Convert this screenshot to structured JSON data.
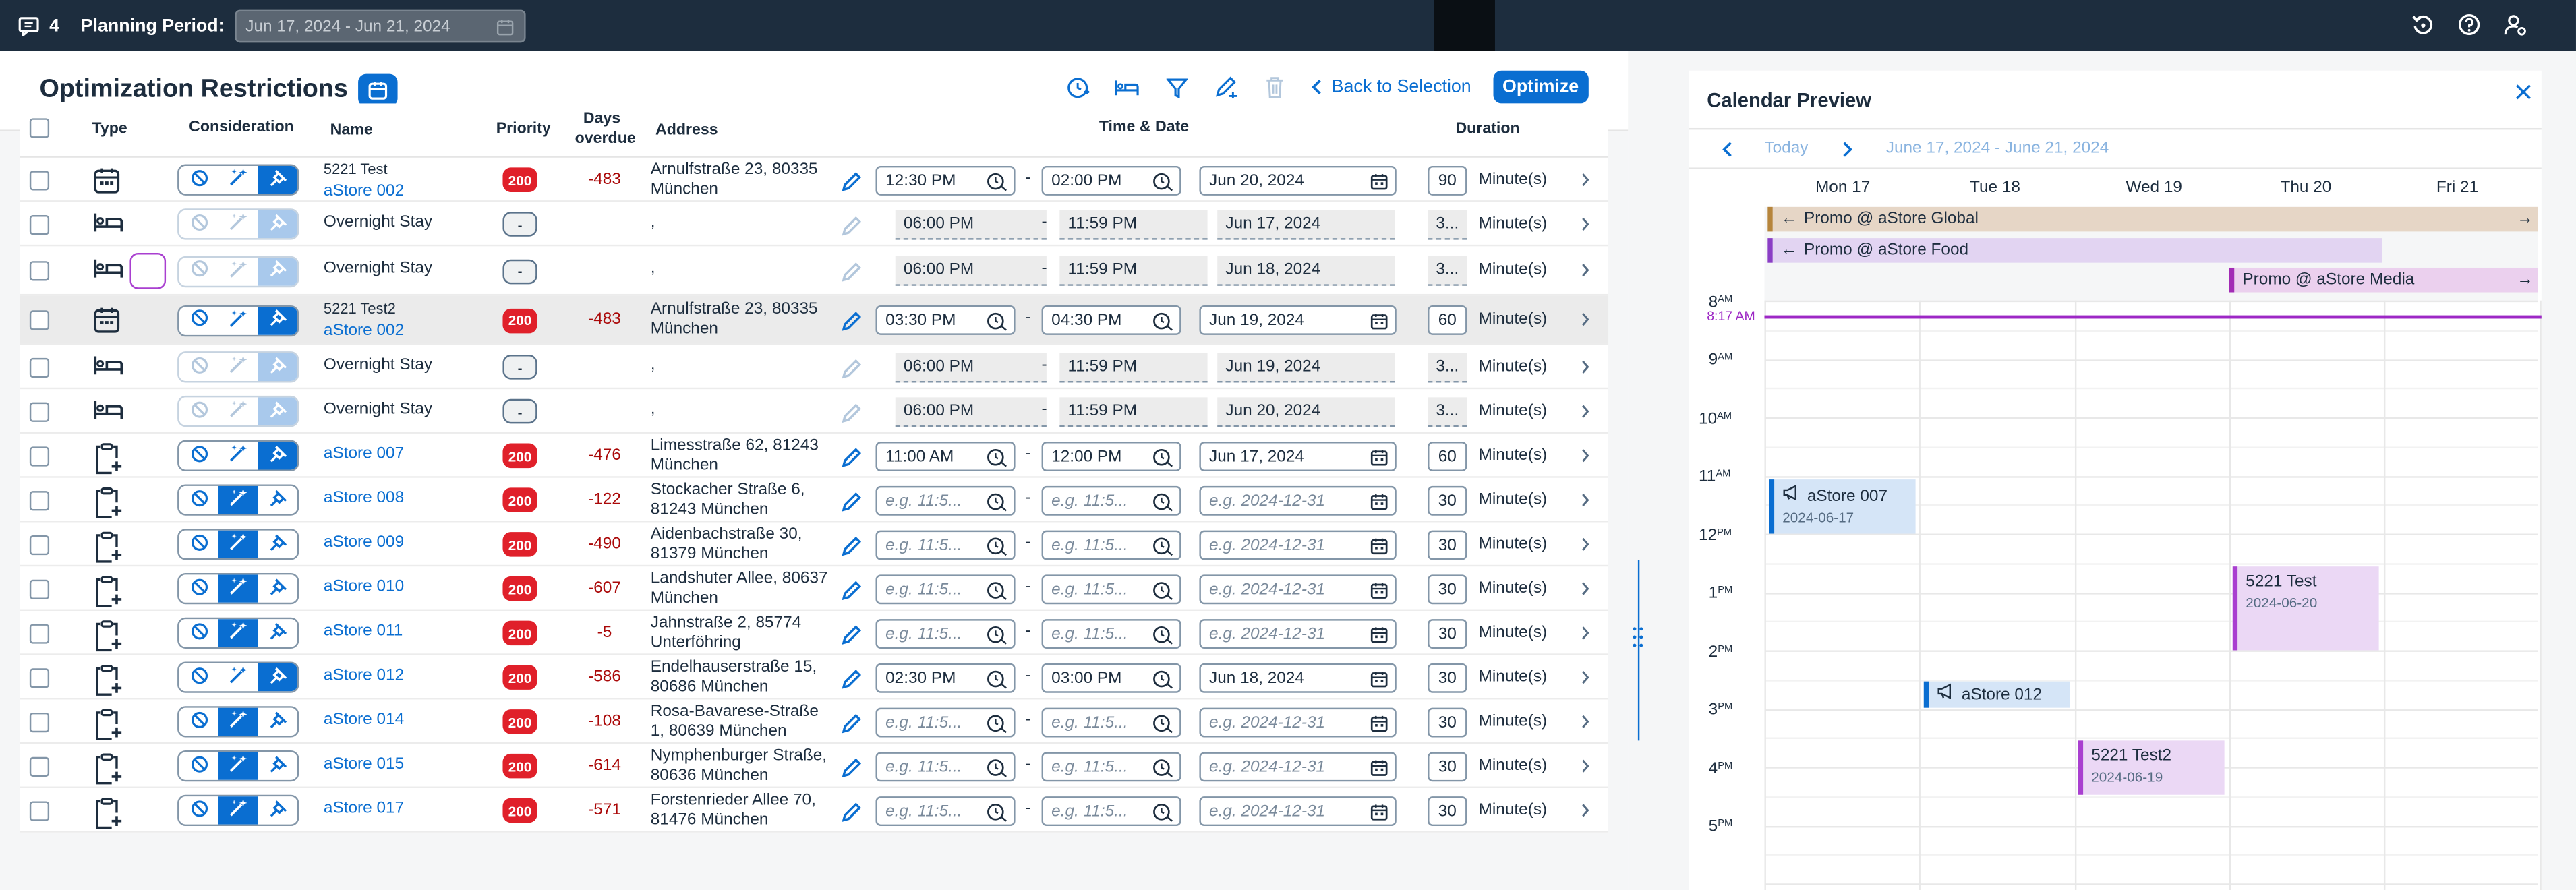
{
  "shell": {
    "message_count": "4",
    "planning_label": "Planning Period:",
    "planning_value": "Jun 17, 2024 - Jun 21, 2024"
  },
  "page": {
    "title": "Optimization Restrictions",
    "back_label": "Back to Selection",
    "optimize_label": "Optimize"
  },
  "columns": {
    "type": "Type",
    "consideration": "Consideration",
    "name": "Name",
    "priority": "Priority",
    "days_overdue_1": "Days",
    "days_overdue_2": "overdue",
    "address": "Address",
    "time_date": "Time & Date",
    "duration": "Duration"
  },
  "rows": [
    {
      "type": "calendar",
      "small": "5221 Test",
      "name": "aStore 002",
      "link": true,
      "prio": "200",
      "days": "-483",
      "addr1": "Arnulfstraße 23, 80335",
      "addr2": "München",
      "start": "12:30 PM",
      "end": "02:00 PM",
      "date": "Jun 20, 2024",
      "dur": "90",
      "unit": "Minute(s)",
      "state": "normal",
      "cons": [
        false,
        false,
        true
      ]
    },
    {
      "type": "bed",
      "small": "",
      "name": "Overnight Stay",
      "link": false,
      "prio": "-",
      "days": "",
      "addr1": ",",
      "addr2": "",
      "start": "06:00 PM",
      "end": "11:59 PM",
      "date": "Jun 17, 2024",
      "dur": "3...",
      "unit": "Minute(s)",
      "state": "disabled",
      "cons": [
        false,
        false,
        true
      ]
    },
    {
      "type": "bed",
      "small": "",
      "name": "Overnight Stay",
      "link": false,
      "prio": "-",
      "days": "",
      "addr1": ",",
      "addr2": "",
      "start": "06:00 PM",
      "end": "11:59 PM",
      "date": "Jun 18, 2024",
      "dur": "3...",
      "unit": "Minute(s)",
      "state": "disabled",
      "cons": [
        false,
        false,
        true
      ]
    },
    {
      "type": "calendar",
      "small": "5221 Test2",
      "name": "aStore 002",
      "link": true,
      "prio": "200",
      "days": "-483",
      "addr1": "Arnulfstraße 23, 80335",
      "addr2": "München",
      "start": "03:30 PM",
      "end": "04:30 PM",
      "date": "Jun 19, 2024",
      "dur": "60",
      "unit": "Minute(s)",
      "state": "normal",
      "cons": [
        false,
        false,
        true
      ]
    },
    {
      "type": "bed",
      "small": "",
      "name": "Overnight Stay",
      "link": false,
      "prio": "-",
      "days": "",
      "addr1": ",",
      "addr2": "",
      "start": "06:00 PM",
      "end": "11:59 PM",
      "date": "Jun 19, 2024",
      "dur": "3...",
      "unit": "Minute(s)",
      "state": "disabled",
      "cons": [
        false,
        false,
        true
      ]
    },
    {
      "type": "bed",
      "small": "",
      "name": "Overnight Stay",
      "link": false,
      "prio": "-",
      "days": "",
      "addr1": ",",
      "addr2": "",
      "start": "06:00 PM",
      "end": "11:59 PM",
      "date": "Jun 20, 2024",
      "dur": "3...",
      "unit": "Minute(s)",
      "state": "disabled",
      "cons": [
        false,
        false,
        true
      ]
    },
    {
      "type": "clip",
      "small": "",
      "name": "aStore 007",
      "link": true,
      "prio": "200",
      "days": "-476",
      "addr1": "Limesstraße 62, 81243",
      "addr2": "München",
      "start": "11:00 AM",
      "end": "12:00 PM",
      "date": "Jun 17, 2024",
      "dur": "60",
      "unit": "Minute(s)",
      "state": "normal",
      "cons": [
        false,
        false,
        true
      ]
    },
    {
      "type": "clip",
      "small": "",
      "name": "aStore 008",
      "link": true,
      "prio": "200",
      "days": "-122",
      "addr1": "Stockacher Straße 6,",
      "addr2": "81243 München",
      "start": "e.g. 11:5...",
      "end": "e.g. 11:5...",
      "date": "e.g. 2024-12-31",
      "dur": "30",
      "unit": "Minute(s)",
      "state": "ph",
      "cons": [
        false,
        true,
        false
      ]
    },
    {
      "type": "clip",
      "small": "",
      "name": "aStore 009",
      "link": true,
      "prio": "200",
      "days": "-490",
      "addr1": "Aidenbachstraße 30,",
      "addr2": "81379 München",
      "start": "e.g. 11:5...",
      "end": "e.g. 11:5...",
      "date": "e.g. 2024-12-31",
      "dur": "30",
      "unit": "Minute(s)",
      "state": "ph",
      "cons": [
        false,
        true,
        false
      ]
    },
    {
      "type": "clip",
      "small": "",
      "name": "aStore 010",
      "link": true,
      "prio": "200",
      "days": "-607",
      "addr1": "Landshuter Allee, 80637",
      "addr2": "München",
      "start": "e.g. 11:5...",
      "end": "e.g. 11:5...",
      "date": "e.g. 2024-12-31",
      "dur": "30",
      "unit": "Minute(s)",
      "state": "ph",
      "cons": [
        false,
        true,
        false
      ]
    },
    {
      "type": "clip",
      "small": "",
      "name": "aStore 011",
      "link": true,
      "prio": "200",
      "days": "-5",
      "addr1": "Jahnstraße 2, 85774",
      "addr2": "Unterföhring",
      "start": "e.g. 11:5...",
      "end": "e.g. 11:5...",
      "date": "e.g. 2024-12-31",
      "dur": "30",
      "unit": "Minute(s)",
      "state": "ph",
      "cons": [
        false,
        true,
        false
      ]
    },
    {
      "type": "clip",
      "small": "",
      "name": "aStore 012",
      "link": true,
      "prio": "200",
      "days": "-586",
      "addr1": "Endelhauserstraße 15,",
      "addr2": "80686 München",
      "start": "02:30 PM",
      "end": "03:00 PM",
      "date": "Jun 18, 2024",
      "dur": "30",
      "unit": "Minute(s)",
      "state": "normal",
      "cons": [
        false,
        false,
        true
      ]
    },
    {
      "type": "clip",
      "small": "",
      "name": "aStore 014",
      "link": true,
      "prio": "200",
      "days": "-108",
      "addr1": "Rosa-Bavarese-Straße",
      "addr2": "1, 80639 München",
      "start": "e.g. 11:5...",
      "end": "e.g. 11:5...",
      "date": "e.g. 2024-12-31",
      "dur": "30",
      "unit": "Minute(s)",
      "state": "ph",
      "cons": [
        false,
        true,
        false
      ]
    },
    {
      "type": "clip",
      "small": "",
      "name": "aStore 015",
      "link": true,
      "prio": "200",
      "days": "-614",
      "addr1": "Nymphenburger Straße,",
      "addr2": "80636 München",
      "start": "e.g. 11:5...",
      "end": "e.g. 11:5...",
      "date": "e.g. 2024-12-31",
      "dur": "30",
      "unit": "Minute(s)",
      "state": "ph",
      "cons": [
        false,
        true,
        false
      ]
    },
    {
      "type": "clip",
      "small": "",
      "name": "aStore 017",
      "link": true,
      "prio": "200",
      "days": "-571",
      "addr1": "Forstenrieder Allee 70,",
      "addr2": "81476 München",
      "start": "e.g. 11:5...",
      "end": "e.g. 11:5...",
      "date": "e.g. 2024-12-31",
      "dur": "30",
      "unit": "Minute(s)",
      "state": "ph",
      "cons": [
        false,
        true,
        false
      ]
    }
  ],
  "calendar": {
    "title": "Calendar Preview",
    "today": "Today",
    "range": "June 17, 2024 - June 21, 2024",
    "days": [
      "Mon 17",
      "Tue 18",
      "Wed 19",
      "Thu 20",
      "Fri 21"
    ],
    "promos": [
      {
        "label": "Promo @ aStore Global",
        "color": "#e6d6c6",
        "border": "#b6853c",
        "left_arrow": true,
        "right_arrow": true
      },
      {
        "label": "Promo @ aStore Food",
        "color": "#e2d4f2",
        "border": "#8a3ec5",
        "left_arrow": true,
        "right_arrow": false
      },
      {
        "label": "Promo @ aStore Media",
        "color": "#ebd0ee",
        "border": "#a22bb5",
        "left_arrow": false,
        "right_arrow": true
      }
    ],
    "hours": [
      [
        "8",
        "AM"
      ],
      [
        "9",
        "AM"
      ],
      [
        "10",
        "AM"
      ],
      [
        "11",
        "AM"
      ],
      [
        "12",
        "PM"
      ],
      [
        "1",
        "PM"
      ],
      [
        "2",
        "PM"
      ],
      [
        "3",
        "PM"
      ],
      [
        "4",
        "PM"
      ],
      [
        "5",
        "PM"
      ]
    ],
    "now": "8:17 AM",
    "events": [
      {
        "title": "aStore 007",
        "sub": "2024-06-17",
        "icon": true
      },
      {
        "title": "aStore 012",
        "sub": "",
        "icon": true
      },
      {
        "title": "5221 Test2",
        "sub": "2024-06-19",
        "icon": false
      },
      {
        "title": "5221 Test",
        "sub": "2024-06-20",
        "icon": false
      }
    ]
  }
}
